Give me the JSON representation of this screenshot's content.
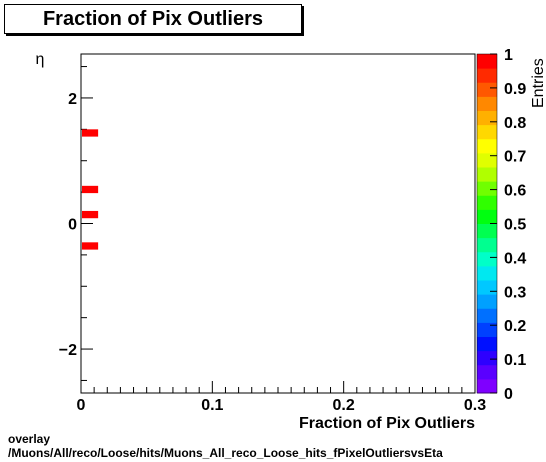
{
  "chart_data": {
    "type": "heatmap",
    "title": "Fraction of Pix Outliers",
    "xlabel": "Fraction of Pix Outliers",
    "ylabel": "η",
    "zlabel": "Entries",
    "xlim": [
      0,
      0.3
    ],
    "ylim": [
      -2.7,
      2.7
    ],
    "zlim": [
      0,
      1
    ],
    "x_ticks": [
      "0",
      "0.1",
      "0.2",
      "0.3"
    ],
    "x_tick_values": [
      0,
      0.1,
      0.2,
      0.3
    ],
    "y_ticks": [
      "−2",
      "0",
      "2"
    ],
    "y_tick_values": [
      -2,
      0,
      2
    ],
    "z_ticks": [
      "0",
      "0.1",
      "0.2",
      "0.3",
      "0.4",
      "0.5",
      "0.6",
      "0.7",
      "0.8",
      "0.9",
      "1"
    ],
    "z_tick_values": [
      0,
      0.1,
      0.2,
      0.3,
      0.4,
      0.5,
      0.6,
      0.7,
      0.8,
      0.9,
      1
    ],
    "cells": [
      {
        "x0": 0,
        "x1": 0.01,
        "y0": 1.4,
        "y1": 1.5,
        "value": 1
      },
      {
        "x0": 0,
        "x1": 0.01,
        "y0": 0.5,
        "y1": 0.6,
        "value": 1
      },
      {
        "x0": 0,
        "x1": 0.01,
        "y0": 0.1,
        "y1": 0.2,
        "value": 1
      },
      {
        "x0": 0,
        "x1": 0.01,
        "y0": -0.4,
        "y1": -0.3,
        "value": 1
      }
    ],
    "palette": [
      "#7f00ff",
      "#5a00ff",
      "#2e00ff",
      "#0010ff",
      "#0040ff",
      "#0070ff",
      "#00a0ff",
      "#00c8ff",
      "#00e8f0",
      "#00ffc8",
      "#00ff90",
      "#00ff50",
      "#00ff10",
      "#30ff00",
      "#70ff00",
      "#b0ff00",
      "#e0ff00",
      "#ffff00",
      "#ffd800",
      "#ffb000",
      "#ff8800",
      "#ff5800",
      "#ff2a00",
      "#ff0000"
    ]
  },
  "footer": {
    "line1": "overlay",
    "line2": "/Muons/All/reco/Loose/hits/Muons_All_reco_Loose_hits_fPixelOutliersvsEta"
  }
}
